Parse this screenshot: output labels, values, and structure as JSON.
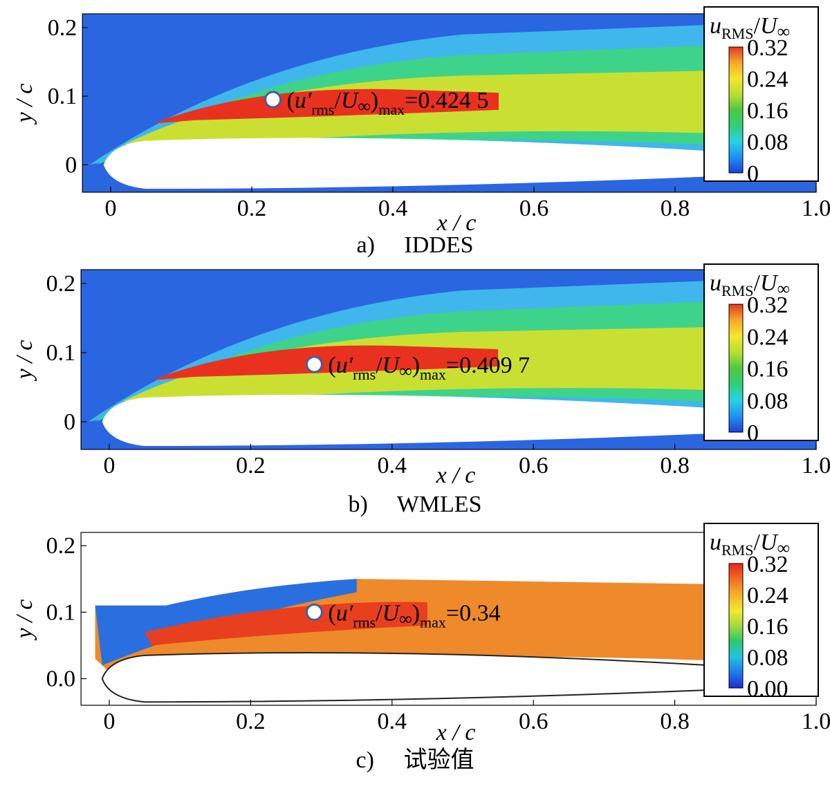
{
  "figure": {
    "panels": [
      {
        "caption_letter": "a)",
        "caption_text": "IDDES",
        "annotation": {
          "prefix": "(",
          "symbol": "u′",
          "sub1": "rms",
          "slash": "/",
          "U": "U",
          "inf": "∞",
          "close": ")",
          "sub2": "max",
          "value": "=0.424 5"
        },
        "legend": {
          "u": "u",
          "sub": "RMS",
          "slash": "/",
          "U": "U",
          "inf": "∞",
          "ticks": [
            "0.32",
            "0.24",
            "0.16",
            "0.08",
            "0"
          ]
        }
      },
      {
        "caption_letter": "b)",
        "caption_text": "WMLES",
        "annotation": {
          "prefix": "(",
          "symbol": "u′",
          "sub1": "rms",
          "slash": "/",
          "U": "U",
          "inf": "∞",
          "close": ")",
          "sub2": "max",
          "value": "=0.409 7"
        },
        "legend": {
          "u": "u",
          "sub": "RMS",
          "slash": "/",
          "U": "U",
          "inf": "∞",
          "ticks": [
            "0.32",
            "0.24",
            "0.16",
            "0.08",
            "0"
          ]
        }
      },
      {
        "caption_letter": "c)",
        "caption_text": "试验值",
        "annotation": {
          "prefix": "(",
          "symbol": "u′",
          "sub1": "rms",
          "slash": "/",
          "U": "U",
          "inf": "∞",
          "close": ")",
          "sub2": "max",
          "value": "=0.34"
        },
        "legend": {
          "u": "u",
          "sub": "RMS",
          "slash": "/",
          "U": "U",
          "inf": "∞",
          "ticks": [
            "0.32",
            "0.24",
            "0.16",
            "0.08",
            "0.00"
          ]
        }
      }
    ]
  },
  "chart_data": [
    {
      "type": "heatmap",
      "title": "IDDES",
      "xlabel": "x/c",
      "ylabel": "y/c",
      "xlim": [
        -0.04,
        1.0
      ],
      "ylim": [
        -0.04,
        0.22
      ],
      "x_ticks": [
        "0",
        "0.2",
        "0.4",
        "0.6",
        "0.8",
        "1.0"
      ],
      "y_ticks": [
        "0",
        "0.1",
        "0.2"
      ],
      "colorbar": {
        "label": "u_RMS/U_∞",
        "min": 0,
        "max": 0.32,
        "ticks": [
          0,
          0.08,
          0.16,
          0.24,
          0.32
        ]
      },
      "max_marker": {
        "x": 0.23,
        "y": 0.095,
        "value": 0.4245
      }
    },
    {
      "type": "heatmap",
      "title": "WMLES",
      "xlabel": "x/c",
      "ylabel": "y/c",
      "xlim": [
        -0.04,
        1.0
      ],
      "ylim": [
        -0.04,
        0.22
      ],
      "x_ticks": [
        "0",
        "0.2",
        "0.4",
        "0.6",
        "0.8",
        "1.0"
      ],
      "y_ticks": [
        "0",
        "0.1",
        "0.2"
      ],
      "colorbar": {
        "label": "u_RMS/U_∞",
        "min": 0,
        "max": 0.32,
        "ticks": [
          0,
          0.08,
          0.16,
          0.24,
          0.32
        ]
      },
      "max_marker": {
        "x": 0.29,
        "y": 0.083,
        "value": 0.4097
      }
    },
    {
      "type": "heatmap",
      "title": "试验值",
      "xlabel": "x/c",
      "ylabel": "y/c",
      "xlim": [
        -0.04,
        1.0
      ],
      "ylim": [
        -0.04,
        0.22
      ],
      "x_ticks": [
        "0",
        "0.2",
        "0.4",
        "0.6",
        "0.8",
        "1.0"
      ],
      "y_ticks": [
        "0.0",
        "0.1",
        "0.2"
      ],
      "colorbar": {
        "label": "u_RMS/U_∞",
        "min": 0,
        "max": 0.32,
        "ticks": [
          0.0,
          0.08,
          0.16,
          0.24,
          0.32
        ]
      },
      "max_marker": {
        "x": 0.29,
        "y": 0.1,
        "value": 0.34
      }
    }
  ]
}
